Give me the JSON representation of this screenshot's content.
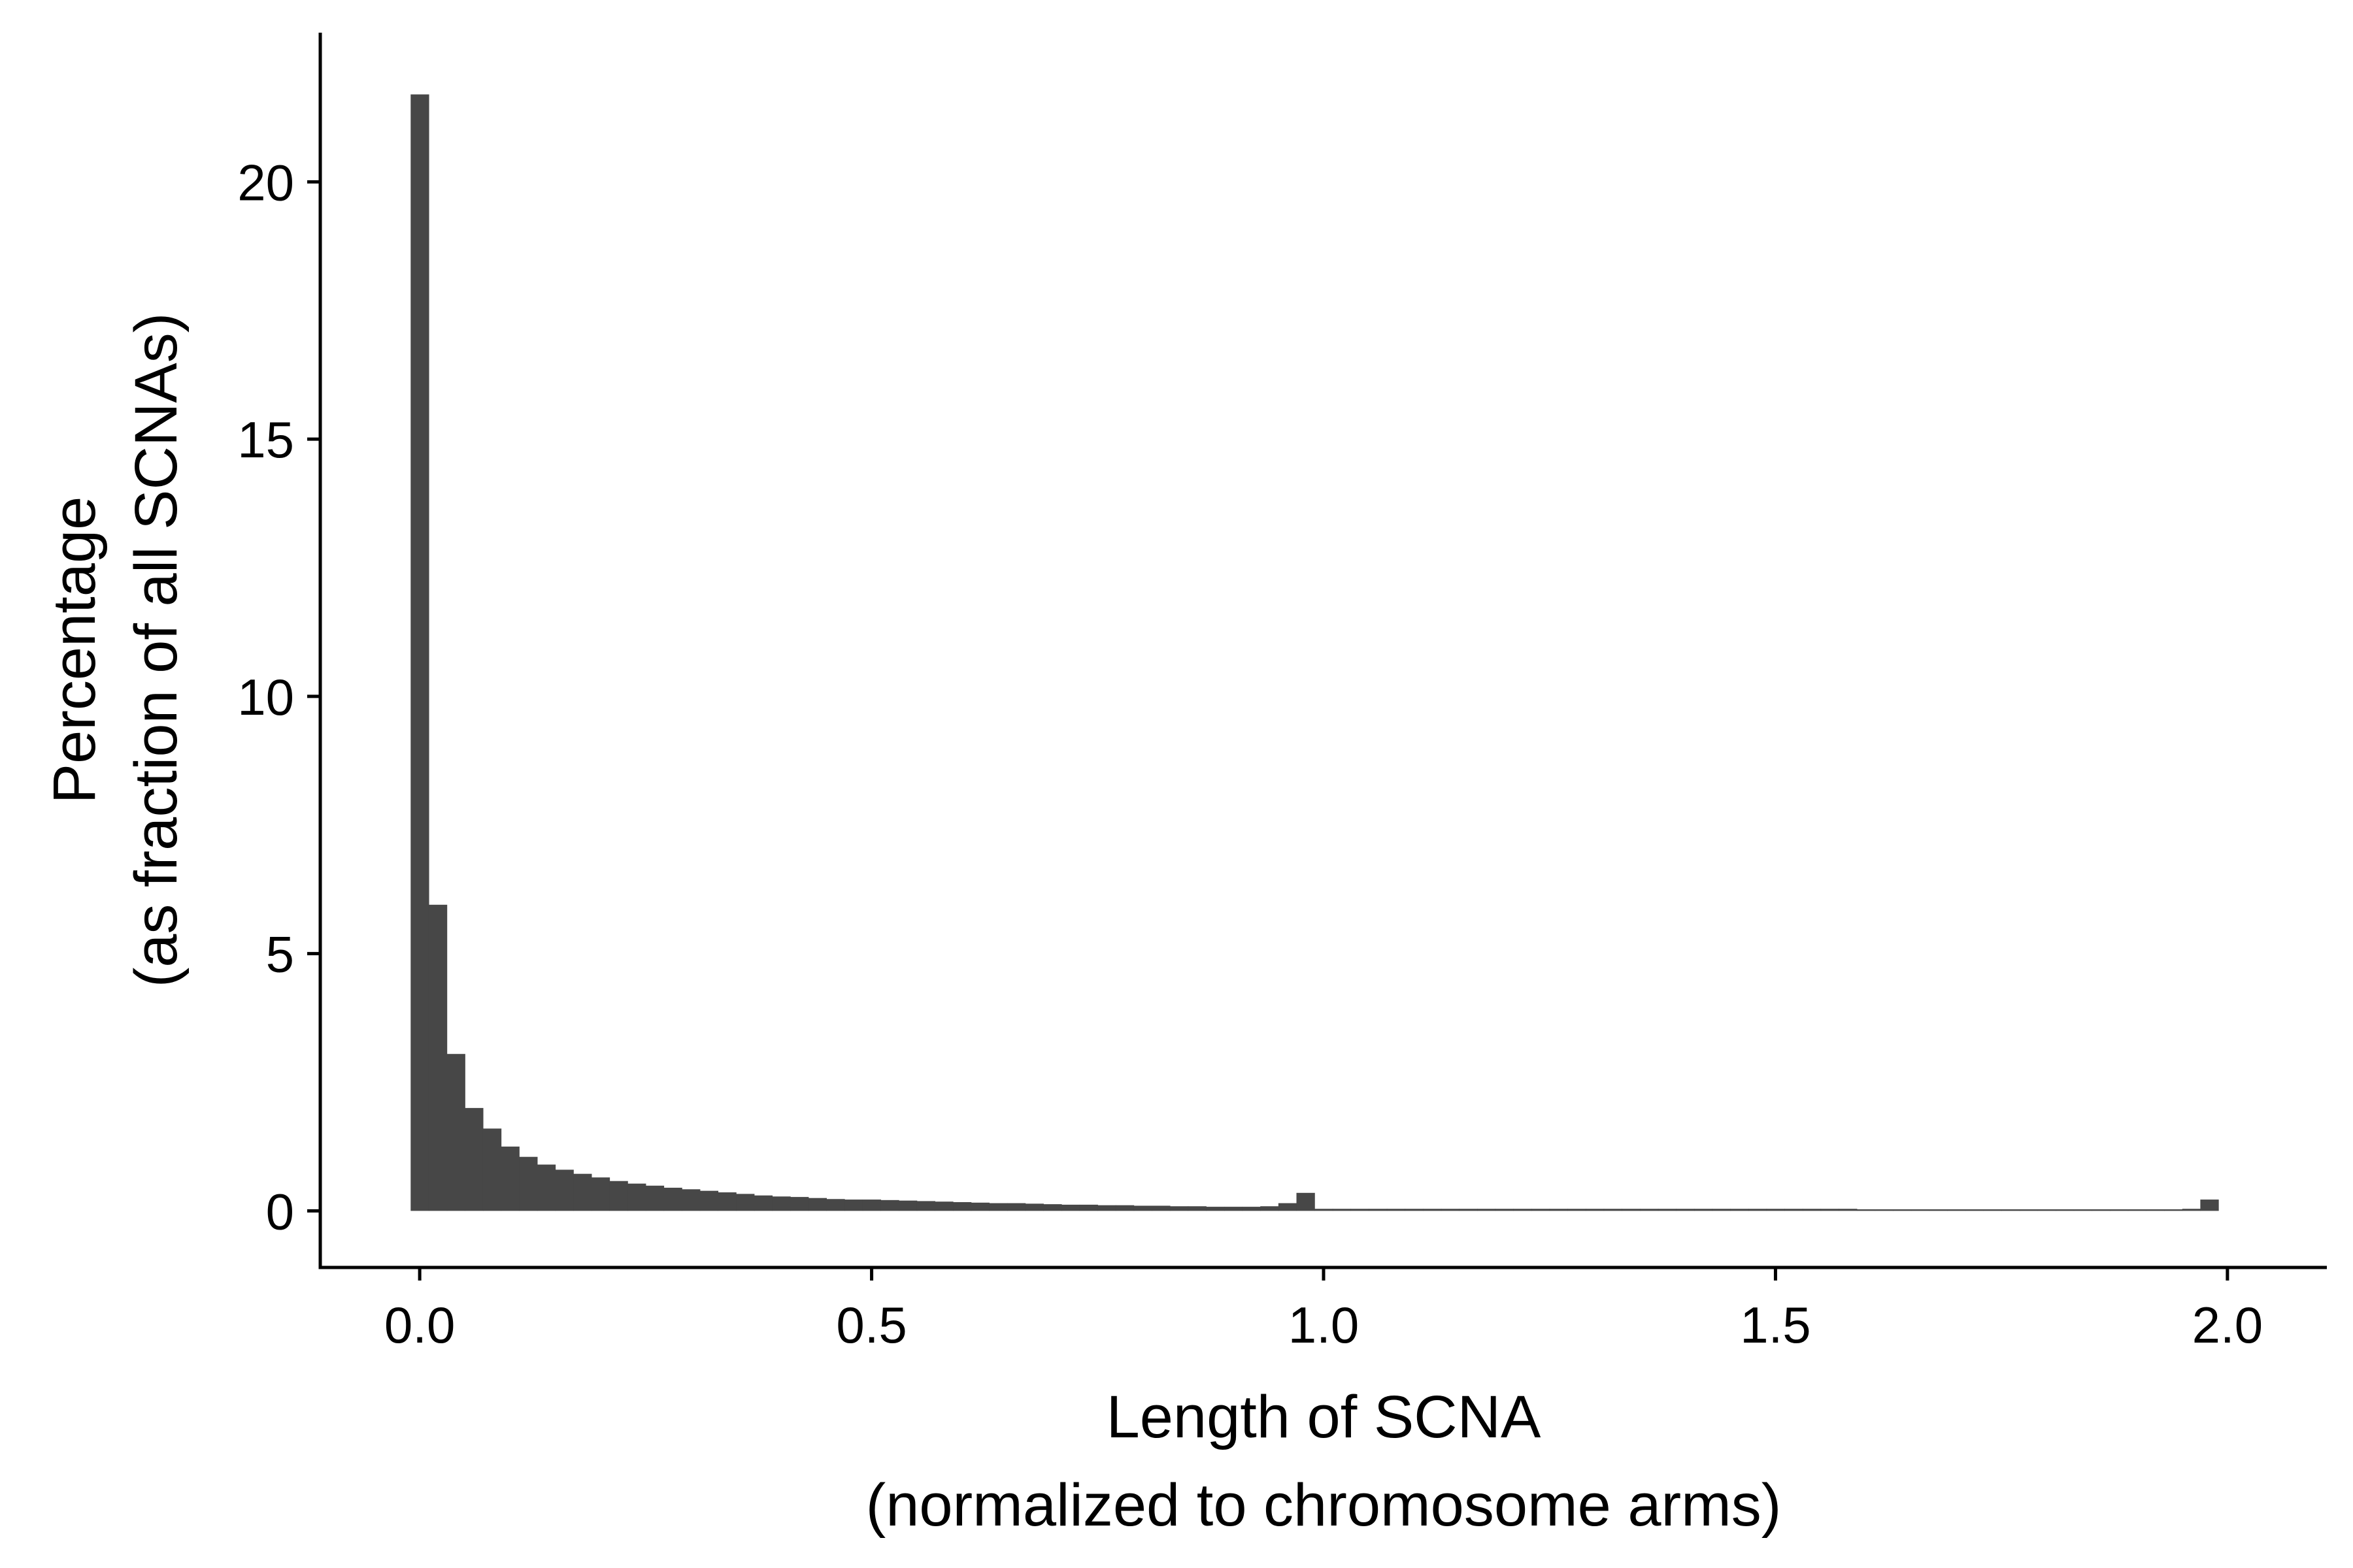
{
  "chart_data": {
    "type": "bar",
    "subtype": "histogram",
    "bin_width": 0.02,
    "xlabel": [
      "Length of SCNA",
      "(normalized to chromosome arms)"
    ],
    "ylabel": [
      "Percentage",
      "(as fraction of all SCNAs)"
    ],
    "xlim": [
      -0.11,
      2.11
    ],
    "ylim": [
      -1.1,
      22.9
    ],
    "x_ticks": [
      0.0,
      0.5,
      1.0,
      1.5,
      2.0
    ],
    "x_tick_labels": [
      "0.0",
      "0.5",
      "1.0",
      "1.5",
      "2.0"
    ],
    "y_ticks": [
      0,
      5,
      10,
      15,
      20
    ],
    "y_tick_labels": [
      "0",
      "5",
      "10",
      "15",
      "20"
    ],
    "grid": false,
    "legend": "none",
    "bar_color": "#474747",
    "bins": [
      {
        "x": 0.0,
        "y": 21.7
      },
      {
        "x": 0.02,
        "y": 5.95
      },
      {
        "x": 0.04,
        "y": 3.05
      },
      {
        "x": 0.06,
        "y": 2.0
      },
      {
        "x": 0.08,
        "y": 1.6
      },
      {
        "x": 0.1,
        "y": 1.25
      },
      {
        "x": 0.12,
        "y": 1.05
      },
      {
        "x": 0.14,
        "y": 0.9
      },
      {
        "x": 0.16,
        "y": 0.8
      },
      {
        "x": 0.18,
        "y": 0.72
      },
      {
        "x": 0.2,
        "y": 0.65
      },
      {
        "x": 0.22,
        "y": 0.58
      },
      {
        "x": 0.24,
        "y": 0.53
      },
      {
        "x": 0.26,
        "y": 0.49
      },
      {
        "x": 0.28,
        "y": 0.45
      },
      {
        "x": 0.3,
        "y": 0.42
      },
      {
        "x": 0.32,
        "y": 0.39
      },
      {
        "x": 0.34,
        "y": 0.36
      },
      {
        "x": 0.36,
        "y": 0.33
      },
      {
        "x": 0.38,
        "y": 0.3
      },
      {
        "x": 0.4,
        "y": 0.28
      },
      {
        "x": 0.42,
        "y": 0.27
      },
      {
        "x": 0.44,
        "y": 0.25
      },
      {
        "x": 0.46,
        "y": 0.23
      },
      {
        "x": 0.48,
        "y": 0.22
      },
      {
        "x": 0.5,
        "y": 0.22
      },
      {
        "x": 0.52,
        "y": 0.21
      },
      {
        "x": 0.54,
        "y": 0.2
      },
      {
        "x": 0.56,
        "y": 0.19
      },
      {
        "x": 0.58,
        "y": 0.18
      },
      {
        "x": 0.6,
        "y": 0.17
      },
      {
        "x": 0.62,
        "y": 0.16
      },
      {
        "x": 0.64,
        "y": 0.15
      },
      {
        "x": 0.66,
        "y": 0.15
      },
      {
        "x": 0.68,
        "y": 0.14
      },
      {
        "x": 0.7,
        "y": 0.13
      },
      {
        "x": 0.72,
        "y": 0.12
      },
      {
        "x": 0.74,
        "y": 0.12
      },
      {
        "x": 0.76,
        "y": 0.11
      },
      {
        "x": 0.78,
        "y": 0.11
      },
      {
        "x": 0.8,
        "y": 0.1
      },
      {
        "x": 0.82,
        "y": 0.1
      },
      {
        "x": 0.84,
        "y": 0.09
      },
      {
        "x": 0.86,
        "y": 0.09
      },
      {
        "x": 0.88,
        "y": 0.08
      },
      {
        "x": 0.9,
        "y": 0.08
      },
      {
        "x": 0.92,
        "y": 0.08
      },
      {
        "x": 0.94,
        "y": 0.09
      },
      {
        "x": 0.96,
        "y": 0.15
      },
      {
        "x": 0.98,
        "y": 0.35
      },
      {
        "x": 1.0,
        "y": 0.04
      },
      {
        "x": 1.02,
        "y": 0.04
      },
      {
        "x": 1.04,
        "y": 0.04
      },
      {
        "x": 1.06,
        "y": 0.04
      },
      {
        "x": 1.08,
        "y": 0.04
      },
      {
        "x": 1.1,
        "y": 0.04
      },
      {
        "x": 1.12,
        "y": 0.04
      },
      {
        "x": 1.14,
        "y": 0.04
      },
      {
        "x": 1.16,
        "y": 0.04
      },
      {
        "x": 1.18,
        "y": 0.04
      },
      {
        "x": 1.2,
        "y": 0.04
      },
      {
        "x": 1.22,
        "y": 0.04
      },
      {
        "x": 1.24,
        "y": 0.04
      },
      {
        "x": 1.26,
        "y": 0.04
      },
      {
        "x": 1.28,
        "y": 0.04
      },
      {
        "x": 1.3,
        "y": 0.04
      },
      {
        "x": 1.32,
        "y": 0.04
      },
      {
        "x": 1.34,
        "y": 0.04
      },
      {
        "x": 1.36,
        "y": 0.04
      },
      {
        "x": 1.38,
        "y": 0.04
      },
      {
        "x": 1.4,
        "y": 0.04
      },
      {
        "x": 1.42,
        "y": 0.04
      },
      {
        "x": 1.44,
        "y": 0.04
      },
      {
        "x": 1.46,
        "y": 0.04
      },
      {
        "x": 1.48,
        "y": 0.04
      },
      {
        "x": 1.5,
        "y": 0.04
      },
      {
        "x": 1.52,
        "y": 0.04
      },
      {
        "x": 1.54,
        "y": 0.04
      },
      {
        "x": 1.56,
        "y": 0.04
      },
      {
        "x": 1.58,
        "y": 0.04
      },
      {
        "x": 1.6,
        "y": 0.03
      },
      {
        "x": 1.62,
        "y": 0.03
      },
      {
        "x": 1.64,
        "y": 0.03
      },
      {
        "x": 1.66,
        "y": 0.03
      },
      {
        "x": 1.68,
        "y": 0.03
      },
      {
        "x": 1.7,
        "y": 0.03
      },
      {
        "x": 1.72,
        "y": 0.03
      },
      {
        "x": 1.74,
        "y": 0.03
      },
      {
        "x": 1.76,
        "y": 0.03
      },
      {
        "x": 1.78,
        "y": 0.03
      },
      {
        "x": 1.8,
        "y": 0.03
      },
      {
        "x": 1.82,
        "y": 0.03
      },
      {
        "x": 1.84,
        "y": 0.03
      },
      {
        "x": 1.86,
        "y": 0.03
      },
      {
        "x": 1.88,
        "y": 0.03
      },
      {
        "x": 1.9,
        "y": 0.03
      },
      {
        "x": 1.92,
        "y": 0.03
      },
      {
        "x": 1.94,
        "y": 0.03
      },
      {
        "x": 1.96,
        "y": 0.04
      },
      {
        "x": 1.98,
        "y": 0.22
      }
    ]
  }
}
